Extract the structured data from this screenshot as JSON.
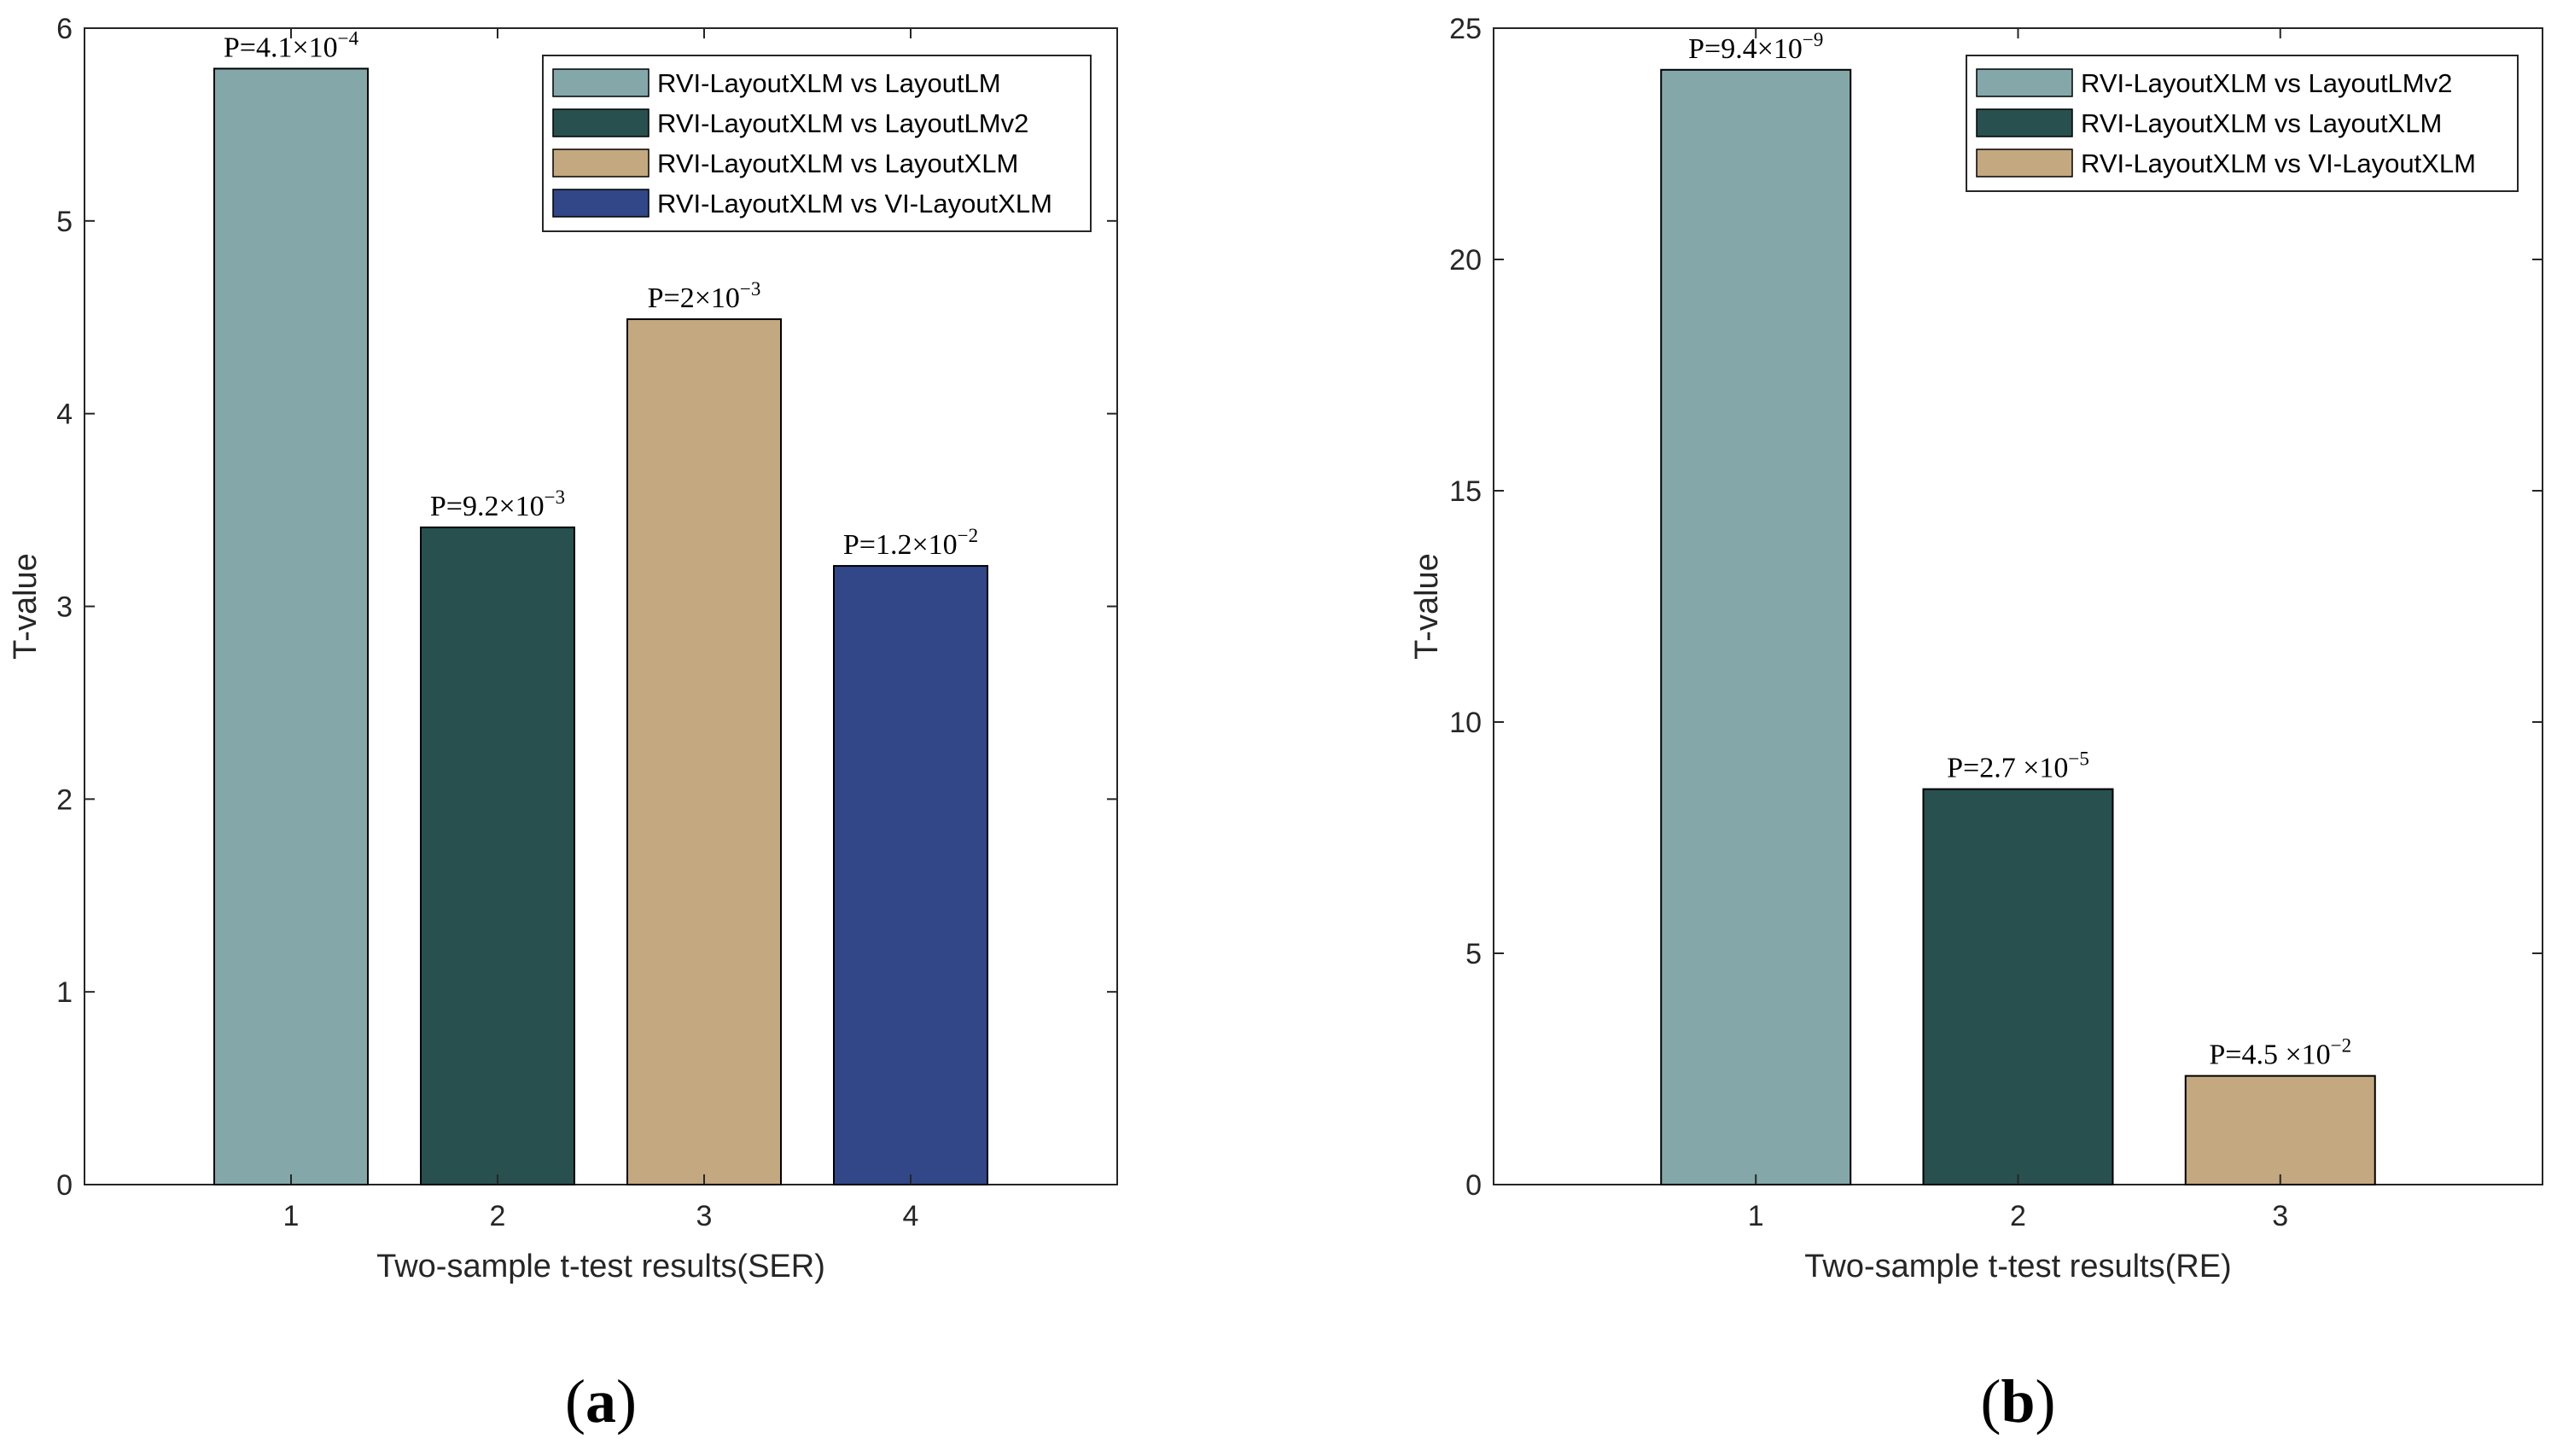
{
  "chart_data": [
    {
      "type": "bar",
      "panel_label": "a",
      "xlabel": "Two-sample t-test results(SER)",
      "ylabel": "T-value",
      "categories": [
        "1",
        "2",
        "3",
        "4"
      ],
      "values": [
        5.79,
        3.41,
        4.49,
        3.21
      ],
      "ylim": [
        0,
        6
      ],
      "yticks": [
        "0",
        "1",
        "2",
        "3",
        "4",
        "5",
        "6"
      ],
      "colors": [
        "#84a8a9",
        "#28504f",
        "#c4a880",
        "#314788"
      ],
      "p_values": [
        {
          "prefix": "P=4.1",
          "times": "×10",
          "exp": "−4"
        },
        {
          "prefix": "P=9.2",
          "times": "×10",
          "exp": "−3"
        },
        {
          "prefix": "P=2",
          "times": "×10",
          "exp": "−3"
        },
        {
          "prefix": "P=1.2",
          "times": "×10",
          "exp": "−2"
        }
      ],
      "legend": [
        "RVI-LayoutXLM vs LayoutLM",
        "RVI-LayoutXLM vs LayoutLMv2",
        "RVI-LayoutXLM vs LayoutXLM",
        "RVI-LayoutXLM vs VI-LayoutXLM"
      ],
      "legend_position": "top-right",
      "grid": false
    },
    {
      "type": "bar",
      "panel_label": "b",
      "xlabel": "Two-sample t-test results(RE)",
      "ylabel": "T-value",
      "categories": [
        "1",
        "2",
        "3"
      ],
      "values": [
        24.1,
        8.55,
        2.35
      ],
      "ylim": [
        0,
        25
      ],
      "yticks": [
        "0",
        "5",
        "10",
        "15",
        "20",
        "25"
      ],
      "colors": [
        "#84a8a9",
        "#28504f",
        "#c4a880"
      ],
      "p_values": [
        {
          "prefix": "P=9.4",
          "times": "×10",
          "exp": "−9"
        },
        {
          "prefix": "P=2.7 ",
          "times": "×10",
          "exp": "−5"
        },
        {
          "prefix": "P=4.5 ",
          "times": "×10",
          "exp": "−2"
        }
      ],
      "legend": [
        "RVI-LayoutXLM vs LayoutLMv2",
        "RVI-LayoutXLM vs LayoutXLM",
        "RVI-LayoutXLM vs VI-LayoutXLM"
      ],
      "legend_position": "top-right",
      "grid": false
    }
  ]
}
